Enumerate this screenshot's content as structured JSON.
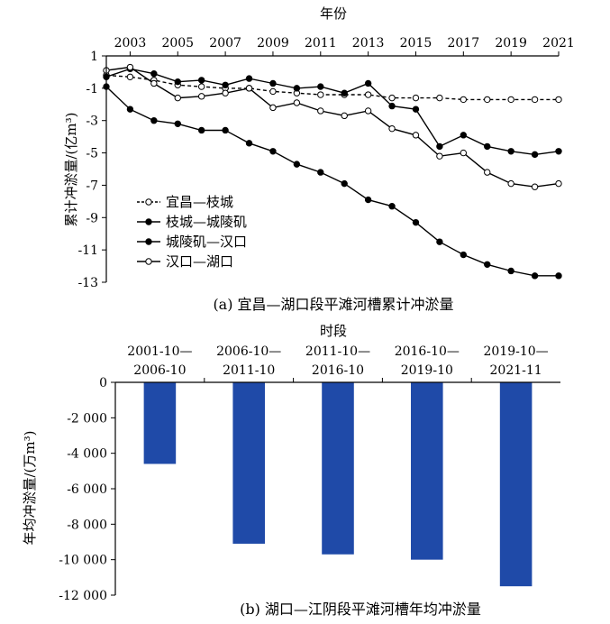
{
  "chart_data": [
    {
      "type": "line",
      "caption": "(a) 宜昌—湖口段平滩河槽累计冲淤量",
      "xlabel": "年份",
      "ylabel": "累计冲淤量/(亿m³)",
      "x_ticks": [
        "2003",
        "2005",
        "2007",
        "2009",
        "2011",
        "2013",
        "2015",
        "2017",
        "2019",
        "2021"
      ],
      "y_ticks": [
        "1",
        "-1",
        "-3",
        "-5",
        "-7",
        "-9",
        "-11",
        "-13"
      ],
      "xlim": [
        2002,
        2021
      ],
      "ylim": [
        -13,
        1
      ],
      "legend_position": "lower-left",
      "x": [
        2002,
        2003,
        2004,
        2005,
        2006,
        2007,
        2008,
        2009,
        2010,
        2011,
        2012,
        2013,
        2014,
        2015,
        2016,
        2017,
        2018,
        2019,
        2020,
        2021
      ],
      "series": [
        {
          "name": "宜昌—枝城",
          "style": "dashed-open",
          "values": [
            -0.2,
            -0.3,
            -0.5,
            -0.8,
            -0.9,
            -1.0,
            -1.0,
            -1.2,
            -1.3,
            -1.4,
            -1.4,
            -1.4,
            -1.6,
            -1.6,
            -1.6,
            -1.7,
            -1.7,
            -1.7,
            -1.7,
            -1.7
          ]
        },
        {
          "name": "枝城—城陵矶",
          "style": "solid-filled",
          "values": [
            -0.9,
            -2.3,
            -3.0,
            -3.2,
            -3.6,
            -3.6,
            -4.4,
            -4.9,
            -5.7,
            -6.2,
            -6.9,
            -7.9,
            -8.3,
            -9.3,
            -10.5,
            -11.3,
            -11.9,
            -12.3,
            -12.6,
            -12.6
          ]
        },
        {
          "name": "城陵矶—汉口",
          "style": "solid-filled",
          "values": [
            -0.3,
            0.2,
            -0.1,
            -0.6,
            -0.5,
            -0.8,
            -0.4,
            -0.7,
            -1.0,
            -0.9,
            -1.3,
            -0.7,
            -2.1,
            -2.3,
            -4.6,
            -3.9,
            -4.6,
            -4.9,
            -5.1,
            -4.9
          ]
        },
        {
          "name": "汉口—湖口",
          "style": "solid-open",
          "values": [
            0.1,
            0.3,
            -0.7,
            -1.6,
            -1.5,
            -1.3,
            -1.0,
            -2.2,
            -1.9,
            -2.4,
            -2.7,
            -2.4,
            -3.5,
            -3.9,
            -5.2,
            -5.0,
            -6.2,
            -6.9,
            -7.1,
            -6.9
          ]
        }
      ]
    },
    {
      "type": "bar",
      "caption": "(b) 湖口—江阴段平滩河槽年均冲淤量",
      "xlabel": "时段",
      "ylabel": "年均冲淤量/(万m³)",
      "categories": [
        [
          "2001-10—",
          "2006-10"
        ],
        [
          "2006-10—",
          "2011-10"
        ],
        [
          "2011-10—",
          "2016-10"
        ],
        [
          "2016-10—",
          "2019-10"
        ],
        [
          "2019-10—",
          "2021-11"
        ]
      ],
      "values": [
        -4600,
        -9100,
        -9700,
        -10000,
        -11500
      ],
      "y_ticks": [
        "0",
        "-2 000",
        "-4 000",
        "-6 000",
        "-8 000",
        "-10 000",
        "-12 000"
      ],
      "ylim": [
        -12000,
        0
      ],
      "bar_color": "#1f4aa8"
    }
  ]
}
